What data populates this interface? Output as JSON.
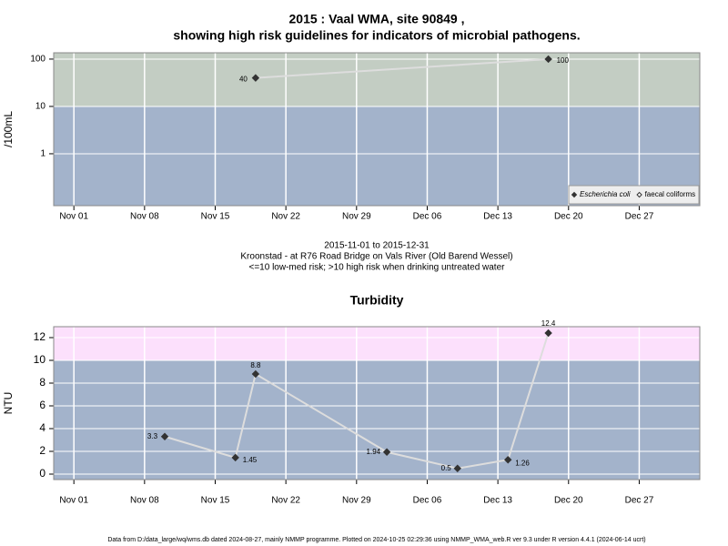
{
  "chart_data": [
    {
      "type": "line",
      "title": [
        "2015 : Vaal WMA, site 90849 ,",
        "showing high risk guidelines for indicators of microbial pathogens."
      ],
      "y_label": "/100mL",
      "log_y": true,
      "x": [
        "2015-11-19",
        "2015-12-18"
      ],
      "series": [
        {
          "name": "Escherichia coli",
          "color": "#333333",
          "line_color": "#dddddd",
          "marker": "filled",
          "values": [
            40,
            100
          ]
        },
        {
          "name": "faecal coliforms",
          "color": "#333333",
          "line_color": "#dddddd",
          "marker": "open",
          "values": [
            null,
            null
          ]
        }
      ],
      "xlim": [
        "2015-10-30",
        "2016-01-02"
      ],
      "xticks": [
        {
          "value": "2015-11-01",
          "label": "Nov 01"
        },
        {
          "value": "2015-11-08",
          "label": "Nov 08"
        },
        {
          "value": "2015-11-15",
          "label": "Nov 15"
        },
        {
          "value": "2015-11-22",
          "label": "Nov 22"
        },
        {
          "value": "2015-11-29",
          "label": "Nov 29"
        },
        {
          "value": "2015-12-06",
          "label": "Dec 06"
        },
        {
          "value": "2015-12-13",
          "label": "Dec 13"
        },
        {
          "value": "2015-12-20",
          "label": "Dec 20"
        },
        {
          "value": "2015-12-27",
          "label": "Dec 27"
        }
      ],
      "ylim": [
        0.08,
        136
      ],
      "yticks": [
        1,
        10,
        100
      ],
      "threshold": 10,
      "above_color": "#c3cdc3",
      "below_color": "#a3b3cb",
      "grid": true,
      "legend": "bottom-right"
    },
    {
      "type": "line",
      "title": [
        "Turbidity"
      ],
      "y_label": "NTU",
      "log_y": false,
      "x": [
        "2015-11-10",
        "2015-11-17",
        "2015-11-19",
        "2015-12-02",
        "2015-12-09",
        "2015-12-14",
        "2015-12-18"
      ],
      "series": [
        {
          "name": null,
          "color": "#333333",
          "line_color": "#dddddd",
          "marker": "filled",
          "values": [
            3.3,
            1.45,
            8.8,
            1.94,
            0.5,
            1.26,
            12.4
          ]
        }
      ],
      "xlim": [
        "2015-10-30",
        "2016-01-02"
      ],
      "xticks": [
        {
          "value": "2015-11-01",
          "label": "Nov 01"
        },
        {
          "value": "2015-11-08",
          "label": "Nov 08"
        },
        {
          "value": "2015-11-15",
          "label": "Nov 15"
        },
        {
          "value": "2015-11-22",
          "label": "Nov 22"
        },
        {
          "value": "2015-11-29",
          "label": "Nov 29"
        },
        {
          "value": "2015-12-06",
          "label": "Dec 06"
        },
        {
          "value": "2015-12-13",
          "label": "Dec 13"
        },
        {
          "value": "2015-12-20",
          "label": "Dec 20"
        },
        {
          "value": "2015-12-27",
          "label": "Dec 27"
        }
      ],
      "ylim": [
        -0.48,
        12.96
      ],
      "yticks": [
        0,
        2,
        4,
        6,
        8,
        10,
        12
      ],
      "threshold": 10,
      "above_color": "#fce0fc",
      "below_color": "#a3b3cb",
      "grid": true,
      "legend": null
    }
  ],
  "caption": [
    "2015-11-01 to 2015-12-31",
    "Kroonstad - at R76 Road Bridge on Vals River (Old Barend Wessel)",
    "<=10 low-med risk; >10 high risk when drinking untreated water"
  ],
  "footer": "Data from D:/data_large/wq/wms.db dated 2024-08-27, mainly NMMP programme. Plotted on 2024-10-25 02:29:36 using NMMP_WMA_web.R ver 9.3 under R version 4.4.1 (2024-06-14 ucrt)"
}
